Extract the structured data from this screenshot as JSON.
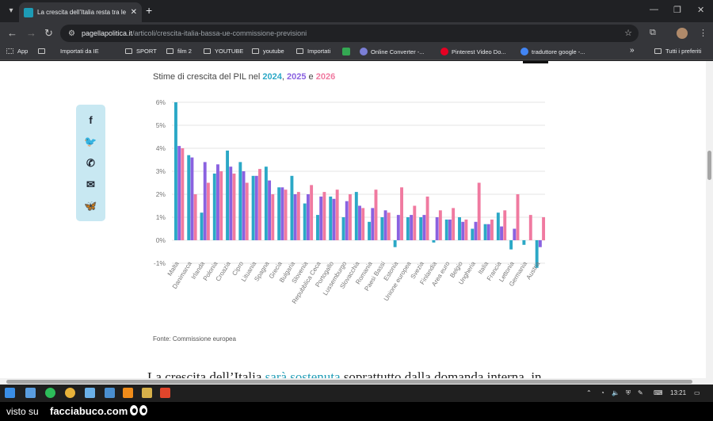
{
  "browser": {
    "tab_title": "La crescita dell’Italia resta tra le",
    "tab_close": "✕",
    "new_tab": "+",
    "url_host": "pagellapolitica.it",
    "url_path": "/articoli/crescita-italia-bassa-ue-commissione-previsioni",
    "bookmarks": [
      "App",
      "Importati da IE",
      "SPORT",
      "film 2",
      "YOUTUBE",
      "youtube",
      "Importati",
      "Online Converter -...",
      "Pinterest Video Do...",
      "traduttore google -..."
    ],
    "bookmarks_overflow": "»",
    "bookmarks_other": "Tutti i preferiti"
  },
  "article": {
    "subtitle_prefix": "Stime di crescita del PIL nel ",
    "year1": "2024",
    "sep1": ", ",
    "year2": "2025",
    "sep2": " e ",
    "year3": "2026",
    "source": "Fonte: Commissione europea",
    "body_start": "La crescita dell’Italia ",
    "body_link": "sarà sostenuta",
    "body_end": " soprattutto dalla domanda interna, in"
  },
  "colors": {
    "year2024": "#2ba8c6",
    "year2025": "#8a62e0",
    "year2026": "#f07aa0"
  },
  "chart_data": {
    "type": "bar",
    "title": "Stime di crescita del PIL nel 2024, 2025 e 2026",
    "ylim": [
      -1.2,
      6
    ],
    "yticks": [
      "6%",
      "5%",
      "4%",
      "3%",
      "2%",
      "1%",
      "0%",
      "-1%"
    ],
    "grid": true,
    "categories": [
      "Malta",
      "Danimarca",
      "Irlanda",
      "Polonia",
      "Croazia",
      "Cipro",
      "Lituania",
      "Spagna",
      "Grecia",
      "Bulgaria",
      "Slovenia",
      "Repubblica Ceca",
      "Portogallo",
      "Lussemburgo",
      "Slovacchia",
      "Romania",
      "Paesi Bassi",
      "Estonia",
      "Unione europea",
      "Svezia",
      "Finlandia",
      "Area euro",
      "Belgio",
      "Ungheria",
      "Italia",
      "Francia",
      "Lettonia",
      "Germania",
      "Austria"
    ],
    "series": [
      {
        "name": "2024",
        "values": [
          6.0,
          3.7,
          1.2,
          2.9,
          3.9,
          3.4,
          2.8,
          3.2,
          2.3,
          2.8,
          1.6,
          1.1,
          1.9,
          1.0,
          2.1,
          0.8,
          1.0,
          -0.3,
          1.0,
          1.0,
          -0.1,
          0.9,
          1.0,
          0.5,
          0.7,
          1.2,
          -0.4,
          -0.2,
          -1.2
        ]
      },
      {
        "name": "2025",
        "values": [
          4.1,
          3.6,
          3.4,
          3.3,
          3.2,
          3.0,
          2.8,
          2.6,
          2.3,
          2.0,
          2.0,
          1.9,
          1.8,
          1.7,
          1.5,
          1.4,
          1.3,
          1.1,
          1.1,
          1.1,
          1.0,
          0.9,
          0.8,
          0.8,
          0.7,
          0.6,
          0.5,
          0.0,
          -0.3
        ]
      },
      {
        "name": "2026",
        "values": [
          4.0,
          2.0,
          2.5,
          3.0,
          2.9,
          2.5,
          3.1,
          2.0,
          2.2,
          2.1,
          2.4,
          2.1,
          2.2,
          2.0,
          1.4,
          2.2,
          1.2,
          2.3,
          1.5,
          1.9,
          1.3,
          1.4,
          0.9,
          2.5,
          0.9,
          1.3,
          2.0,
          1.1,
          1.0
        ]
      }
    ]
  },
  "taskbar": {
    "time": "13:21"
  },
  "watermark": {
    "prefix": "visto su",
    "site": "facciabuco.com"
  }
}
